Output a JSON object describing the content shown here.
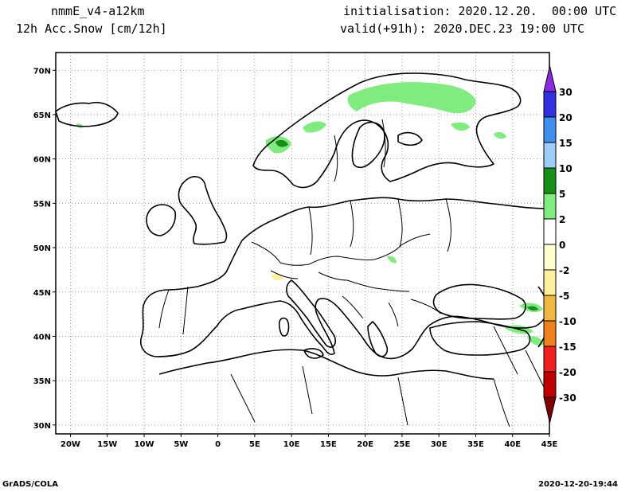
{
  "header": {
    "model": "nmmE_v4-a12km",
    "field": "12h Acc.Snow [cm/12h]",
    "init": "initialisation: 2020.12.20.  00:00 UTC",
    "valid": "valid(+91h): 2020.DEC.23 19:00 UTC"
  },
  "footer": {
    "left": "GrADS/COLA",
    "right": "2020-12-20-19:44"
  },
  "map": {
    "lon_range": [
      -22,
      45
    ],
    "lat_range": [
      29,
      72
    ],
    "lon_ticks": [
      "20W",
      "15W",
      "10W",
      "5W",
      "0",
      "5E",
      "10E",
      "15E",
      "20E",
      "25E",
      "30E",
      "35E",
      "40E",
      "45E"
    ],
    "lon_values": [
      -20,
      -15,
      -10,
      -5,
      0,
      5,
      10,
      15,
      20,
      25,
      30,
      35,
      40,
      45
    ],
    "lat_ticks": [
      "30N",
      "35N",
      "40N",
      "45N",
      "50N",
      "55N",
      "60N",
      "65N",
      "70N"
    ],
    "lat_values": [
      30,
      35,
      40,
      45,
      50,
      55,
      60,
      65,
      70
    ],
    "grid": true,
    "colorbar": {
      "labels": [
        "30",
        "20",
        "15",
        "10",
        "5",
        "2",
        "0",
        "-2",
        "-5",
        "-10",
        "-15",
        "-20",
        "-30"
      ],
      "colors": [
        "#8a2be2",
        "#3030e0",
        "#4090f0",
        "#a0ccf8",
        "#189018",
        "#80ec80",
        "#ffffff",
        "#ffffd0",
        "#fff0a0",
        "#f0b840",
        "#f08020",
        "#f02020",
        "#c00000",
        "#800000"
      ]
    },
    "snow_colors": {
      "light": "#80ec80",
      "medium": "#189018",
      "pale_yellow": "#fff0a0"
    }
  }
}
